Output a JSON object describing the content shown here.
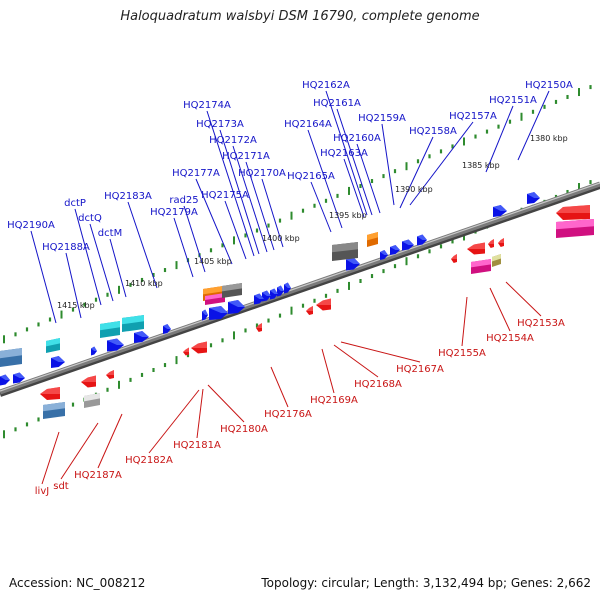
{
  "title": "Haloquadratum walsbyi DSM 16790, complete genome",
  "footer": {
    "accession": "Accession: NC_008212",
    "summary": "Topology: circular; Length: 3,132,494 bp; Genes: 2,662"
  },
  "colors": {
    "backbone": "#7a7a7a",
    "tick": "#2e8b2e",
    "forward_label": "#1414c8",
    "reverse_label": "#c81414",
    "forward_gene": "#0a12e6",
    "reverse_gene": "#e61414"
  },
  "kbp_labels": [
    "1380 kbp",
    "1385 kbp",
    "1390 kbp",
    "1395 kbp",
    "1400 kbp",
    "1405 kbp",
    "1410 kbp",
    "1415 kbp"
  ],
  "forward_labels": [
    "HQ2150A",
    "HQ2151A",
    "HQ2157A",
    "HQ2158A",
    "HQ2159A",
    "HQ2160A",
    "HQ2161A",
    "HQ2162A",
    "HQ2163A",
    "HQ2164A",
    "HQ2165A",
    "HQ2170A",
    "HQ2171A",
    "HQ2172A",
    "HQ2173A",
    "HQ2174A",
    "HQ2175A",
    "HQ2177A",
    "rad25",
    "HQ2179A",
    "HQ2183A",
    "dctP",
    "dctQ",
    "dctM",
    "HQ2188A",
    "HQ2190A"
  ],
  "reverse_labels": [
    "HQ2153A",
    "HQ2154A",
    "HQ2155A",
    "HQ2167A",
    "HQ2168A",
    "HQ2169A",
    "HQ2176A",
    "HQ2180A",
    "HQ2181A",
    "HQ2182A",
    "HQ2187A",
    "sdt",
    "livJ"
  ]
}
